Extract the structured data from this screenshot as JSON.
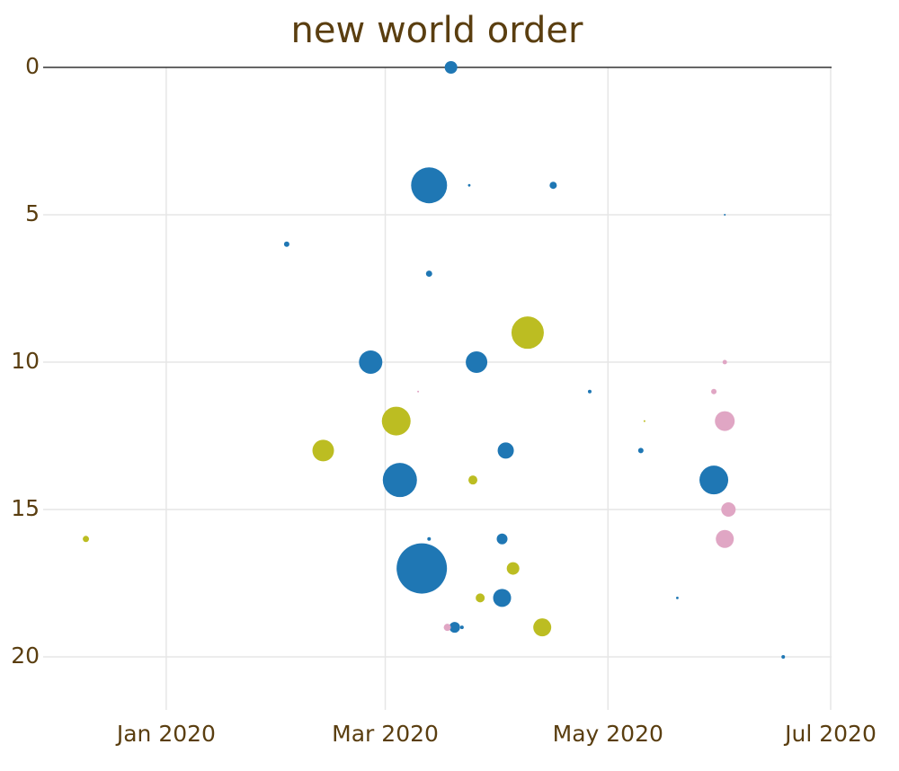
{
  "chart_data": {
    "type": "scatter",
    "title": "new world order",
    "xlim": [
      "2019-12-01",
      "2020-07-01"
    ],
    "xticks": [
      {
        "value": "2020-01-01",
        "label": "Jan 2020"
      },
      {
        "value": "2020-03-01",
        "label": "Mar 2020"
      },
      {
        "value": "2020-05-01",
        "label": "May 2020"
      },
      {
        "value": "2020-07-01",
        "label": "Jul 2020"
      }
    ],
    "ylim": [
      21.8,
      0
    ],
    "yticks": [
      0,
      5,
      10,
      15,
      20
    ],
    "grid": true,
    "series": [
      {
        "color": "#1f77b4",
        "x": [
          "2020-03-19",
          "2020-03-13",
          "2020-03-24",
          "2020-04-16",
          "2020-02-03",
          "2020-03-13",
          "2020-02-26",
          "2020-03-26",
          "2020-04-26",
          "2020-05-10",
          "2020-04-03",
          "2020-03-05",
          "2020-05-30",
          "2020-03-13",
          "2020-04-02",
          "2020-03-11",
          "2020-04-02",
          "2020-05-20",
          "2020-03-20",
          "2020-03-22",
          "2020-06-18",
          "2020-06-02"
        ],
        "values": [
          0,
          4,
          4,
          4,
          6,
          7,
          10,
          10,
          11,
          13,
          13,
          14,
          14,
          16,
          16,
          17,
          18,
          18,
          19,
          19,
          20,
          5
        ],
        "sizes": [
          49,
          400,
          2,
          16,
          9,
          12,
          169,
          144,
          4,
          9,
          81,
          361,
          256,
          4,
          36,
          784,
          100,
          2,
          36,
          4,
          4,
          1
        ]
      },
      {
        "color": "#bcbd22",
        "x": [
          "2019-12-10",
          "2020-02-13",
          "2020-03-04",
          "2020-04-09",
          "2020-03-25",
          "2020-04-05",
          "2020-03-27",
          "2020-04-13",
          "2020-05-11"
        ],
        "values": [
          16,
          13,
          12,
          9,
          14,
          17,
          18,
          19,
          12
        ],
        "sizes": [
          12,
          144,
          256,
          324,
          25,
          49,
          25,
          100,
          1
        ]
      },
      {
        "color": "#e0a6c4",
        "x": [
          "2020-06-02",
          "2020-05-30",
          "2020-06-02",
          "2020-06-03",
          "2020-06-02",
          "2020-03-18",
          "2020-03-10"
        ],
        "values": [
          10,
          11,
          12,
          15,
          16,
          19,
          11
        ],
        "sizes": [
          6,
          9,
          121,
          64,
          100,
          16,
          1
        ]
      }
    ]
  }
}
